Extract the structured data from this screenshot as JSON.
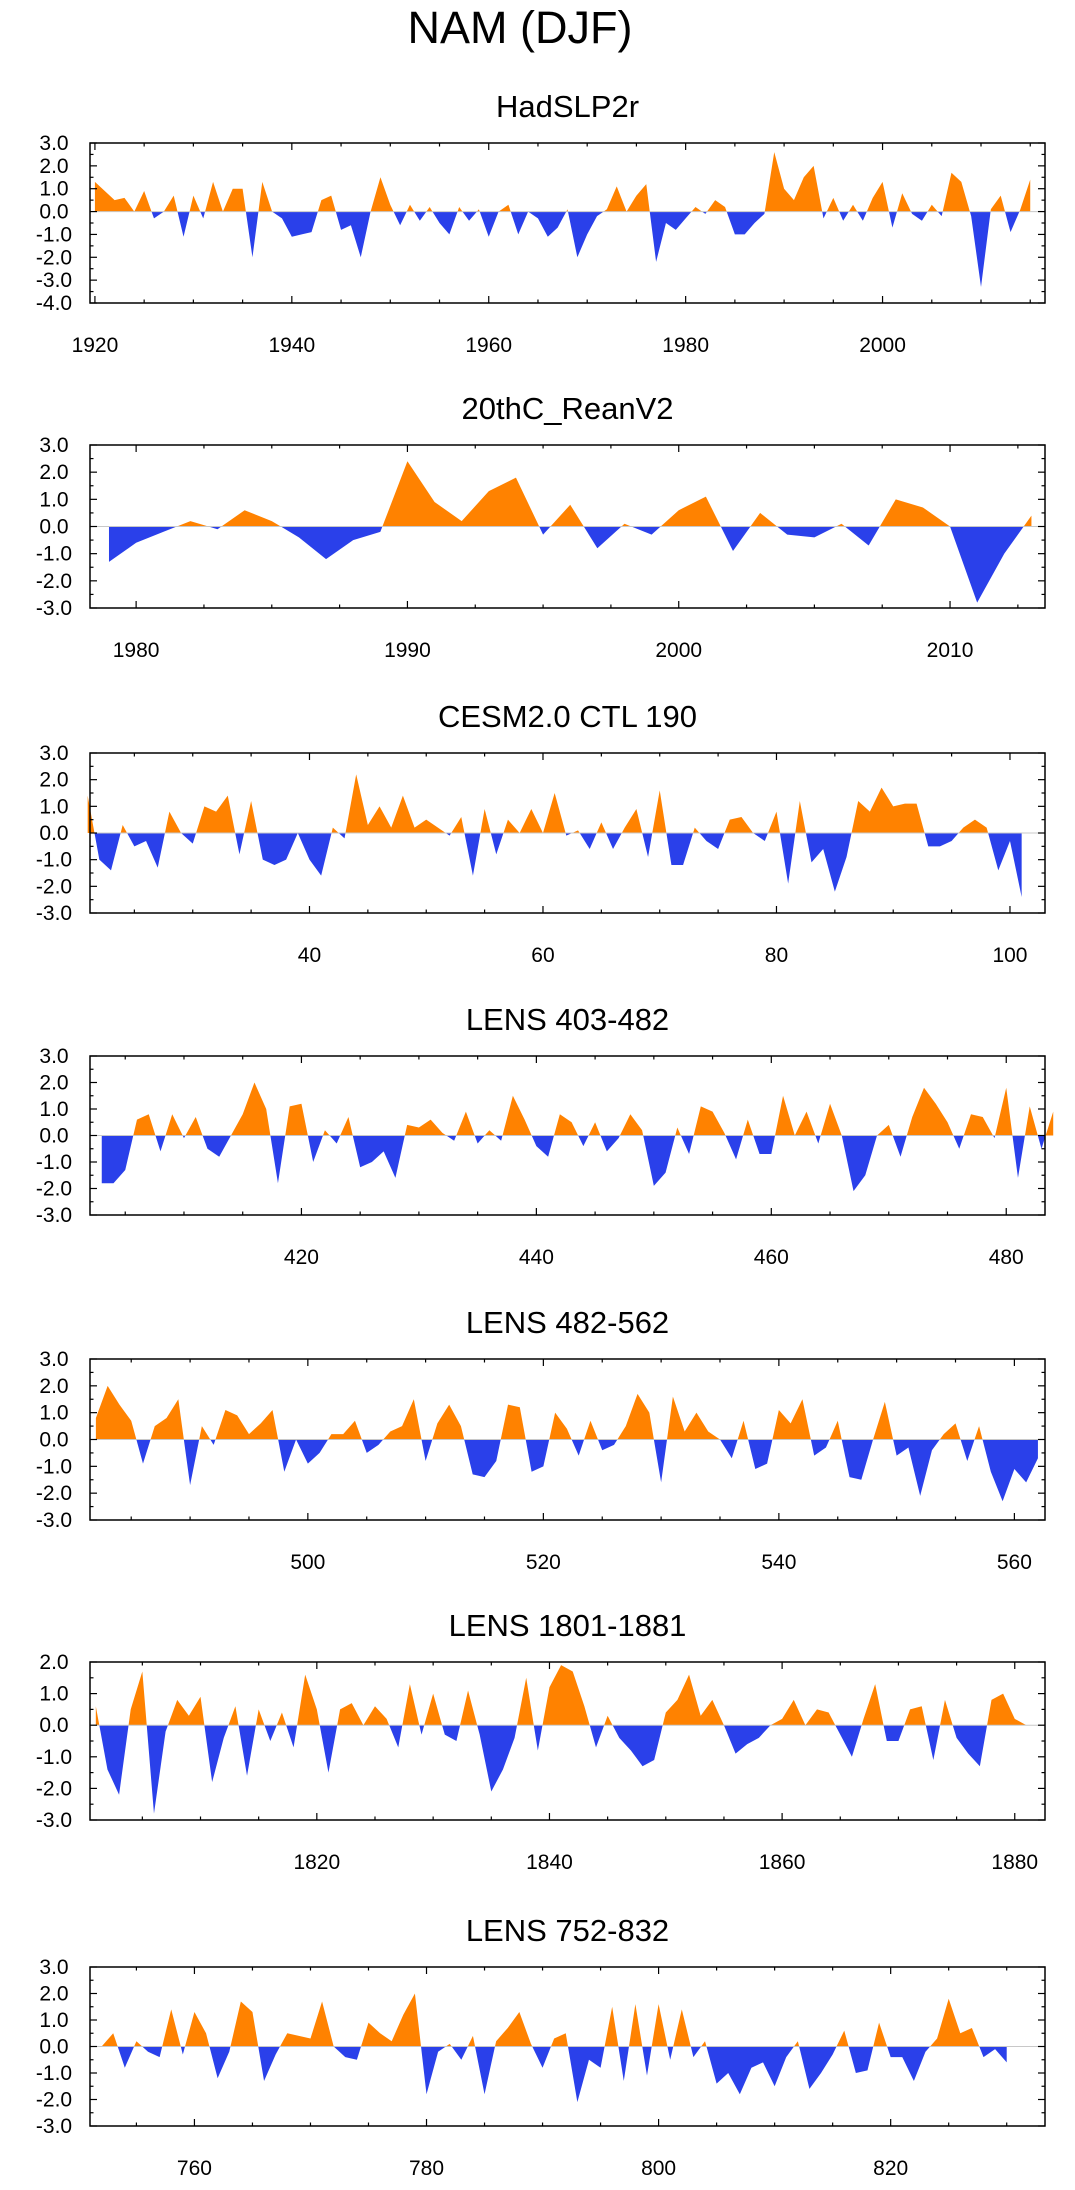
{
  "figure_title": "NAM (DJF)",
  "colors": {
    "positive": "#FF8200",
    "negative": "#2A40EA",
    "axis": "#000000"
  },
  "chart_data": [
    {
      "type": "area",
      "title": "HadSLP2r",
      "xlabel": "",
      "ylabel": "",
      "xlim": [
        1919.5,
        2016.5
      ],
      "ylim": [
        -4.0,
        3.0
      ],
      "xticks": [
        1920,
        1940,
        1960,
        1980,
        2000
      ],
      "xtick_labels": [
        "1920",
        "1940",
        "1960",
        "1980",
        "2000"
      ],
      "yticks": [
        3.0,
        2.0,
        1.0,
        0.0,
        -1.0,
        -2.0,
        -3.0,
        -4.0
      ],
      "ytick_labels": [
        "3.0",
        "2.0",
        "1.0",
        "0.0",
        "-1.0",
        "-2.0",
        "-3.0",
        "-4.0"
      ],
      "x_start": 1920,
      "values": [
        1.3,
        0.9,
        0.5,
        0.6,
        0.0,
        0.9,
        -0.3,
        0.0,
        0.7,
        -1.1,
        0.7,
        -0.3,
        1.3,
        0.0,
        1.0,
        1.0,
        -2.0,
        1.3,
        0.0,
        -0.3,
        -1.1,
        -1.0,
        -0.9,
        0.5,
        0.7,
        -0.8,
        -0.6,
        -2.0,
        0.0,
        1.5,
        0.3,
        -0.6,
        0.3,
        -0.4,
        0.2,
        -0.5,
        -1.0,
        0.2,
        -0.4,
        0.1,
        -1.1,
        0.0,
        0.3,
        -1.0,
        0.0,
        -0.3,
        -1.1,
        -0.7,
        0.1,
        -2.0,
        -1.0,
        -0.2,
        0.1,
        1.1,
        0.0,
        0.7,
        1.2,
        -2.2,
        -0.5,
        -0.8,
        -0.3,
        0.2,
        -0.1,
        0.5,
        0.2,
        -1.0,
        -1.0,
        -0.5,
        -0.1,
        2.6,
        1.0,
        0.5,
        1.5,
        2.0,
        -0.3,
        0.6,
        -0.4,
        0.3,
        -0.4,
        0.6,
        1.3,
        -0.7,
        0.8,
        -0.1,
        -0.4,
        0.3,
        -0.2,
        1.7,
        1.3,
        -0.2,
        -3.3,
        0.1,
        0.7,
        -0.9,
        0.1,
        1.4
      ]
    },
    {
      "type": "area",
      "title": "20thC_ReanV2",
      "xlabel": "",
      "ylabel": "",
      "xlim": [
        1978.3,
        2013.5
      ],
      "ylim": [
        -3.0,
        3.0
      ],
      "xticks": [
        1980,
        1990,
        2000,
        2010
      ],
      "xtick_labels": [
        "1980",
        "1990",
        "2000",
        "2010"
      ],
      "yticks": [
        3.0,
        2.0,
        1.0,
        0.0,
        -1.0,
        -2.0,
        -3.0
      ],
      "ytick_labels": [
        "3.0",
        "2.0",
        "1.0",
        "0.0",
        "-1.0",
        "-2.0",
        "-3.0"
      ],
      "x_start": 1979,
      "values": [
        -1.3,
        -0.6,
        -0.2,
        0.2,
        -0.1,
        0.6,
        0.2,
        -0.4,
        -1.2,
        -0.5,
        -0.2,
        2.4,
        0.9,
        0.2,
        1.3,
        1.8,
        -0.3,
        0.8,
        -0.8,
        0.1,
        -0.3,
        0.6,
        1.1,
        -0.9,
        0.5,
        -0.3,
        -0.4,
        0.1,
        -0.7,
        1.0,
        0.7,
        0.0,
        -2.8,
        -1.0,
        0.4
      ]
    },
    {
      "type": "area",
      "title": "CESM2.0 CTL 190",
      "xlabel": "",
      "ylabel": "",
      "xlim": [
        21.2,
        103.0
      ],
      "ylim": [
        -3.0,
        3.0
      ],
      "xticks": [
        40,
        60,
        80,
        100
      ],
      "xtick_labels": [
        "40",
        "60",
        "80",
        "100"
      ],
      "yticks": [
        3.0,
        2.0,
        1.0,
        0.0,
        -1.0,
        -2.0,
        -3.0
      ],
      "ytick_labels": [
        "3.0",
        "2.0",
        "1.0",
        "0.0",
        "-1.0",
        "-2.0",
        "-3.0"
      ],
      "x_start": 21,
      "values": [
        1.4,
        -1.0,
        -1.4,
        0.3,
        -0.5,
        -0.3,
        -1.3,
        0.8,
        0.0,
        -0.4,
        1.0,
        0.8,
        1.4,
        -0.8,
        1.2,
        -1.0,
        -1.2,
        -1.0,
        0.0,
        -1.0,
        -1.6,
        0.2,
        -0.2,
        2.2,
        0.3,
        1.0,
        0.2,
        1.4,
        0.2,
        0.5,
        0.2,
        -0.1,
        0.6,
        -1.6,
        0.9,
        -0.8,
        0.5,
        0.0,
        0.9,
        0.0,
        1.5,
        -0.1,
        0.1,
        -0.6,
        0.4,
        -0.6,
        0.2,
        0.9,
        -0.9,
        1.6,
        -1.2,
        -1.2,
        0.2,
        -0.3,
        -0.6,
        0.5,
        0.6,
        0.0,
        -0.3,
        0.8,
        -1.9,
        1.2,
        -1.1,
        -0.6,
        -2.2,
        -0.9,
        1.2,
        0.8,
        1.7,
        1.0,
        1.1,
        1.1,
        -0.5,
        -0.5,
        -0.3,
        0.2,
        0.5,
        0.2,
        -1.4,
        -0.3,
        -2.4
      ]
    },
    {
      "type": "area",
      "title": "LENS 403-482",
      "xlabel": "",
      "ylabel": "",
      "xlim": [
        402.0,
        483.3
      ],
      "ylim": [
        -3.0,
        3.0
      ],
      "xticks": [
        420,
        440,
        460,
        480
      ],
      "xtick_labels": [
        "420",
        "440",
        "460",
        "480"
      ],
      "yticks": [
        3.0,
        2.0,
        1.0,
        0.0,
        -1.0,
        -2.0,
        -3.0
      ],
      "ytick_labels": [
        "3.0",
        "2.0",
        "1.0",
        "0.0",
        "-1.0",
        "-2.0",
        "-3.0"
      ],
      "x_start": 403,
      "values": [
        -1.8,
        -1.8,
        -1.3,
        0.6,
        0.8,
        -0.6,
        0.8,
        -0.1,
        0.7,
        -0.5,
        -0.8,
        0.0,
        0.8,
        2.0,
        1.0,
        -1.8,
        1.1,
        1.2,
        -1.0,
        0.2,
        -0.3,
        0.7,
        -1.2,
        -1.0,
        -0.6,
        -1.6,
        0.4,
        0.3,
        0.6,
        0.1,
        -0.2,
        0.9,
        -0.3,
        0.2,
        -0.2,
        1.5,
        0.6,
        -0.4,
        -0.8,
        0.8,
        0.5,
        -0.4,
        0.5,
        -0.6,
        -0.1,
        0.8,
        0.2,
        -1.9,
        -1.4,
        0.3,
        -0.7,
        1.1,
        0.9,
        0.1,
        -0.9,
        0.6,
        -0.7,
        -0.7,
        1.5,
        0.0,
        0.9,
        -0.3,
        1.2,
        0.0,
        -2.1,
        -1.5,
        0.0,
        0.4,
        -0.8,
        0.7,
        1.8,
        1.2,
        0.5,
        -0.5,
        0.8,
        0.7,
        -0.1,
        1.8,
        -1.6,
        1.1,
        -0.5,
        0.9
      ]
    },
    {
      "type": "area",
      "title": "LENS 482-562",
      "xlabel": "",
      "ylabel": "",
      "xlim": [
        481.5,
        562.6
      ],
      "ylim": [
        -3.0,
        3.0
      ],
      "xticks": [
        500,
        520,
        540,
        560
      ],
      "xtick_labels": [
        "500",
        "520",
        "540",
        "560"
      ],
      "yticks": [
        3.0,
        2.0,
        1.0,
        0.0,
        -1.0,
        -2.0,
        -3.0
      ],
      "ytick_labels": [
        "3.0",
        "2.0",
        "1.0",
        "0.0",
        "-1.0",
        "-2.0",
        "-3.0"
      ],
      "x_start": 482,
      "values": [
        0.8,
        2.0,
        1.3,
        0.7,
        -0.9,
        0.5,
        0.8,
        1.5,
        -1.7,
        0.5,
        -0.2,
        1.1,
        0.9,
        0.2,
        0.6,
        1.1,
        -1.2,
        0.0,
        -0.9,
        -0.5,
        0.2,
        0.2,
        0.7,
        -0.5,
        -0.2,
        0.3,
        0.5,
        1.5,
        -0.8,
        0.6,
        1.3,
        0.5,
        -1.3,
        -1.4,
        -0.8,
        1.3,
        1.2,
        -1.2,
        -1.0,
        1.0,
        0.4,
        -0.6,
        0.7,
        -0.4,
        -0.2,
        0.5,
        1.7,
        1.0,
        -1.6,
        1.6,
        0.3,
        1.0,
        0.3,
        0.0,
        -0.7,
        0.7,
        -1.1,
        -0.9,
        1.1,
        0.6,
        1.5,
        -0.6,
        -0.3,
        0.7,
        -1.4,
        -1.5,
        0.0,
        1.4,
        -0.6,
        -0.3,
        -2.1,
        -0.4,
        0.2,
        0.6,
        -0.8,
        0.5,
        -1.2,
        -2.3,
        -1.1,
        -1.6,
        -0.7
      ]
    },
    {
      "type": "area",
      "title": "LENS 1801-1881",
      "xlabel": "",
      "ylabel": "",
      "xlim": [
        1800.5,
        1882.6
      ],
      "ylim": [
        -3.0,
        2.0
      ],
      "xticks": [
        1820,
        1840,
        1860,
        1880
      ],
      "xtick_labels": [
        "1820",
        "1840",
        "1860",
        "1880"
      ],
      "yticks": [
        2.0,
        1.0,
        0.0,
        -1.0,
        -2.0,
        -3.0
      ],
      "ytick_labels": [
        "2.0",
        "1.0",
        "0.0",
        "-1.0",
        "-2.0",
        "-3.0"
      ],
      "x_start": 1801,
      "values": [
        0.6,
        -1.4,
        -2.2,
        0.5,
        1.7,
        -2.8,
        -0.2,
        0.8,
        0.3,
        0.9,
        -1.8,
        -0.4,
        0.6,
        -1.6,
        0.5,
        -0.5,
        0.4,
        -0.7,
        1.6,
        0.5,
        -1.5,
        0.5,
        0.7,
        0.0,
        0.6,
        0.2,
        -0.7,
        1.3,
        -0.3,
        1.0,
        -0.3,
        -0.5,
        1.1,
        -0.3,
        -2.1,
        -1.4,
        -0.4,
        1.5,
        -0.8,
        1.2,
        1.9,
        1.7,
        0.6,
        -0.7,
        0.3,
        -0.4,
        -0.8,
        -1.3,
        -1.1,
        0.4,
        0.8,
        1.6,
        0.3,
        0.8,
        0.0,
        -0.9,
        -0.6,
        -0.4,
        0.0,
        0.2,
        0.8,
        0.0,
        0.5,
        0.4,
        -0.3,
        -1.0,
        0.2,
        1.3,
        -0.5,
        -0.5,
        0.5,
        0.6,
        -1.1,
        0.8,
        -0.4,
        -0.9,
        -1.3,
        0.8,
        1.0,
        0.2,
        0.0
      ]
    },
    {
      "type": "area",
      "title": "LENS 752-832",
      "xlabel": "",
      "ylabel": "",
      "xlim": [
        751.0,
        833.3
      ],
      "ylim": [
        -3.0,
        3.0
      ],
      "xticks": [
        760,
        780,
        800,
        820
      ],
      "xtick_labels": [
        "760",
        "780",
        "800",
        "820"
      ],
      "yticks": [
        3.0,
        2.0,
        1.0,
        0.0,
        -1.0,
        -2.0,
        -3.0
      ],
      "ytick_labels": [
        "3.0",
        "2.0",
        "1.0",
        "0.0",
        "-1.0",
        "-2.0",
        "-3.0"
      ],
      "x_start": 752,
      "values": [
        0.0,
        0.5,
        -0.8,
        0.2,
        -0.2,
        -0.4,
        1.4,
        -0.3,
        1.3,
        0.5,
        -1.2,
        -0.2,
        1.7,
        1.3,
        -1.3,
        -0.3,
        0.5,
        0.4,
        0.3,
        1.7,
        0.0,
        -0.4,
        -0.5,
        0.9,
        0.5,
        0.2,
        1.2,
        2.0,
        -1.8,
        -0.2,
        0.1,
        -0.5,
        0.4,
        -1.8,
        0.2,
        0.7,
        1.3,
        0.1,
        -0.8,
        0.3,
        0.5,
        -2.1,
        -0.5,
        -0.8,
        1.5,
        -1.3,
        1.6,
        -1.1,
        1.6,
        -0.5,
        1.4,
        -0.4,
        0.2,
        -1.4,
        -1.0,
        -1.8,
        -0.8,
        -0.6,
        -1.5,
        -0.4,
        0.2,
        -1.6,
        -1.0,
        -0.3,
        0.6,
        -1.0,
        -0.9,
        0.9,
        -0.4,
        -0.4,
        -1.3,
        -0.2,
        0.3,
        1.8,
        0.5,
        0.7,
        -0.4,
        -0.1,
        -0.6
      ]
    }
  ]
}
